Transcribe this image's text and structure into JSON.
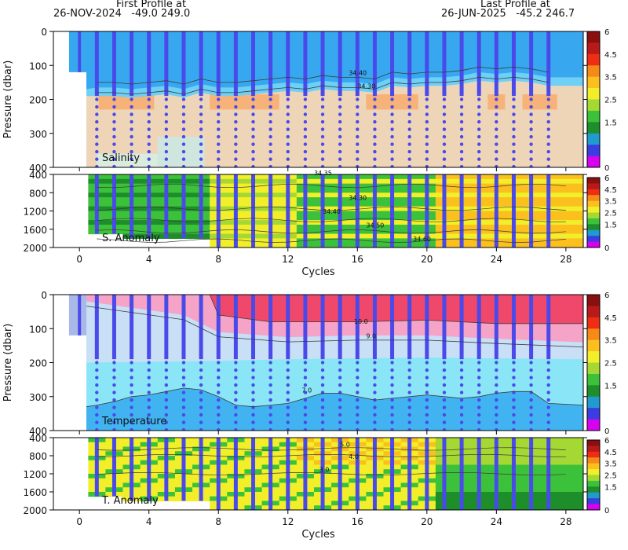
{
  "header": {
    "first_title": "First Profile at",
    "first_info": "26-NOV-2024   -49.0 249.0",
    "last_title": "Last Profile at",
    "last_info": "26-JUN-2025   -45.2 246.7"
  },
  "colors": {
    "scale": [
      "#d800f0",
      "#3a3de0",
      "#1f9bd0",
      "#1d8e2a",
      "#3cc23a",
      "#a6d833",
      "#f2ef2a",
      "#fbc01e",
      "#f58a18",
      "#ef2d12",
      "#b81a1a",
      "#8a0f0f"
    ],
    "profile_line": "#4a4aea",
    "salinity_top": "#37a8f0",
    "salinity_fresh": "#6fd0f5",
    "salinity_mid": "#efd5b8",
    "salinity_salty": "#f7b27a",
    "temp_warm": "#f0486a",
    "temp_pink": "#f5a3c6",
    "temp_mid": "#c8dff5",
    "temp_light": "#8ae6f7",
    "temp_cold": "#41b3f0"
  },
  "colorbar": {
    "ticks": [
      "6",
      "4.5",
      "3.5",
      "2.5",
      "1.5",
      "0"
    ]
  },
  "chart_data": [
    {
      "type": "heatmap",
      "panel": "Salinity",
      "label": "Salinity",
      "ylabel": "Pressure (dbar)",
      "xlim": [
        -1.5,
        29
      ],
      "ylim": [
        400,
        0
      ],
      "x_ticks": [
        0,
        4,
        8,
        12,
        16,
        20,
        24,
        28
      ],
      "y_ticks": [
        0,
        100,
        200,
        300,
        400
      ],
      "contours": [
        {
          "label": "34.40",
          "depth_at_cycle_15": 130
        },
        {
          "label": "34.30",
          "depth_at_cycle_15": 170
        }
      ],
      "profile_cycles": [
        1,
        2,
        3,
        4,
        5,
        6,
        7,
        8,
        9,
        10,
        11,
        12,
        13,
        14,
        15,
        16,
        17,
        18,
        19,
        20,
        21,
        22,
        23,
        24,
        25,
        26,
        27
      ],
      "mixed_layer_depth": [
        190,
        190,
        195,
        190,
        185,
        195,
        180,
        190,
        190,
        185,
        180,
        175,
        180,
        170,
        175,
        175,
        180,
        160,
        165,
        160,
        160,
        155,
        145,
        150,
        145,
        150,
        160
      ]
    },
    {
      "type": "heatmap",
      "panel": "S. Anomaly",
      "label": "S. Anomaly",
      "xlabel": "Cycles",
      "xlim": [
        -1.5,
        29
      ],
      "ylim": [
        2000,
        400
      ],
      "x_ticks": [
        0,
        4,
        8,
        12,
        16,
        20,
        24,
        28
      ],
      "y_ticks": [
        400,
        800,
        1200,
        1600,
        2000
      ],
      "contours": [
        {
          "label": "34.35"
        },
        {
          "label": "34.30"
        },
        {
          "label": "34.40"
        },
        {
          "label": "34.50"
        },
        {
          "label": "34.60"
        }
      ],
      "profile_max_depth": [
        1700,
        1700,
        1800,
        1800,
        1800,
        1800,
        1800,
        2000,
        2000,
        2000,
        2000,
        2000,
        2000,
        2000,
        2000,
        2000,
        2000,
        2000,
        2000,
        2000,
        2000,
        2000,
        2000,
        2000,
        2000,
        2000,
        2000
      ]
    },
    {
      "type": "heatmap",
      "panel": "Temperature",
      "label": "Temperature",
      "ylabel": "Pressure (dbar)",
      "xlim": [
        -1.5,
        29
      ],
      "ylim": [
        400,
        0
      ],
      "x_ticks": [
        0,
        4,
        8,
        12,
        16,
        20,
        24,
        28
      ],
      "y_ticks": [
        0,
        100,
        200,
        300,
        400
      ],
      "contours": [
        {
          "label": "10.0"
        },
        {
          "label": "9.0"
        },
        {
          "label": "7.0"
        }
      ],
      "isotherm_7_depth": [
        325,
        315,
        300,
        295,
        285,
        275,
        280,
        300,
        325,
        330,
        325,
        320,
        305,
        290,
        290,
        300,
        310,
        305,
        300,
        295,
        300,
        305,
        300,
        290,
        285,
        285,
        320
      ]
    },
    {
      "type": "heatmap",
      "panel": "T. Anomaly",
      "label": "T. Anomaly",
      "xlabel": "Cycles",
      "xlim": [
        -1.5,
        29
      ],
      "ylim": [
        2000,
        400
      ],
      "x_ticks": [
        0,
        4,
        8,
        12,
        16,
        20,
        24,
        28
      ],
      "y_ticks": [
        400,
        800,
        1200,
        1600,
        2000
      ],
      "contours": [
        {
          "label": "5.0"
        },
        {
          "label": "4.0"
        },
        {
          "label": "3.0"
        }
      ]
    }
  ]
}
